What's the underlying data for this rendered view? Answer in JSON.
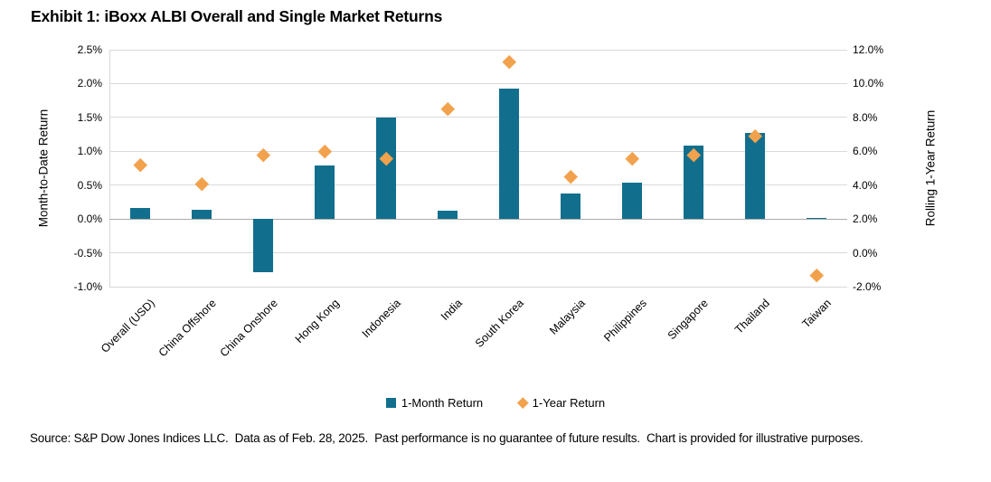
{
  "title": "Exhibit 1: iBoxx ALBI Overall and Single Market Returns",
  "source": "Source: S&P Dow Jones Indices LLC.  Data as of Feb. 28, 2025.  Past performance is no guarantee of future results.  Chart is provided for illustrative purposes.",
  "colors": {
    "bar": "#116F8D",
    "marker": "#F2A24D",
    "gridline": "#D9D9D9",
    "zero_line": "#ABABAB",
    "text": "#000000"
  },
  "chart_data": {
    "type": "bar",
    "title": "Exhibit 1: iBoxx ALBI Overall and Single Market Returns",
    "categories": [
      "Overall (USD)",
      "China Offshore",
      "China Onshore",
      "Hong Kong",
      "Indonesia",
      "India",
      "South Korea",
      "Malaysia",
      "Philippines",
      "Singapore",
      "Thailand",
      "Taiwan"
    ],
    "series": [
      {
        "name": "1-Month Return",
        "type": "bar",
        "axis": "left",
        "unit": "%",
        "values": [
          0.16,
          0.13,
          -0.78,
          0.79,
          1.5,
          0.12,
          1.93,
          0.38,
          0.54,
          1.09,
          1.27,
          0.02
        ]
      },
      {
        "name": "1-Year Return",
        "type": "scatter",
        "axis": "right",
        "unit": "%",
        "values": [
          5.2,
          4.1,
          5.8,
          6.0,
          5.6,
          8.5,
          11.3,
          4.5,
          5.6,
          5.8,
          6.9,
          -1.3
        ]
      }
    ],
    "left_axis": {
      "label": "Month-to-Date Return",
      "min": -1.0,
      "max": 2.5,
      "tick_values": [
        2.5,
        2.0,
        1.5,
        1.0,
        0.5,
        0.0,
        -0.5,
        -1.0
      ],
      "tick_labels": [
        "2.5%",
        "2.0%",
        "1.5%",
        "1.0%",
        "0.5%",
        "0.0%",
        "-0.5%",
        "-1.0%"
      ]
    },
    "right_axis": {
      "label": "Rolling 1-Year Return",
      "min": -2.0,
      "max": 12.0,
      "tick_values": [
        12.0,
        10.0,
        8.0,
        6.0,
        4.0,
        2.0,
        0.0,
        -2.0
      ],
      "tick_labels": [
        "12.0%",
        "10.0%",
        "8.0%",
        "6.0%",
        "4.0%",
        "2.0%",
        "0.0%",
        "-2.0%"
      ]
    },
    "grid": true,
    "legend_position": "bottom"
  }
}
